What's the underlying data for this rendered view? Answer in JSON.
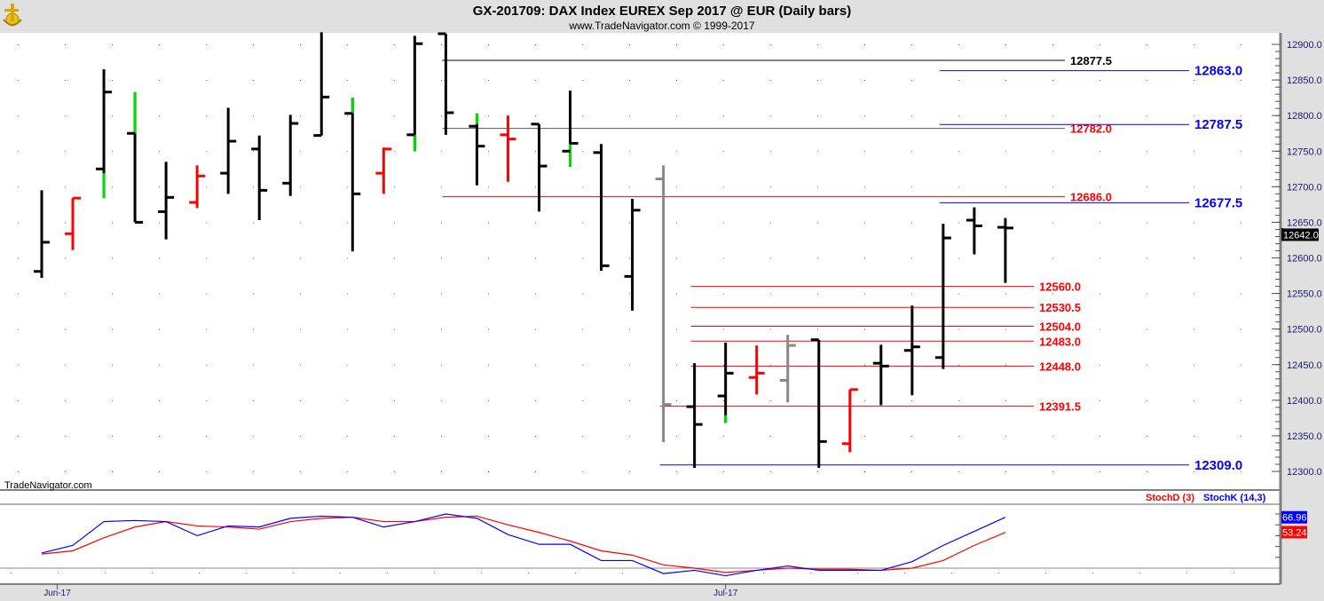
{
  "header": {
    "title": "GX-201709:  DAX Index EUREX Sep 2017 @ EUR  (Daily bars)",
    "subtitle": "www.TradeNavigator.com © 1999-2017",
    "logo_icon": "anchor-logo-icon"
  },
  "watermark": "TradeNavigator.com",
  "colors": {
    "up_highlight": "#00dd00",
    "red": "#ff0000",
    "blue": "#0000ff",
    "gray": "#888888",
    "black": "#000000"
  },
  "chart_data": [
    {
      "type": "ohlc",
      "title": "GX-201709:  DAX Index EUREX Sep 2017 @ EUR  (Daily bars)",
      "ylim": [
        12280,
        12920
      ],
      "yticks": [
        "12300.0",
        "12350.0",
        "12400.0",
        "12450.0",
        "12500.0",
        "12550.0",
        "12600.0",
        "12650.0",
        "12700.0",
        "12750.0",
        "12800.0",
        "12850.0",
        "12900.0"
      ],
      "xticks": [
        {
          "label": "Jun-17",
          "bar": 0.5
        },
        {
          "label": "Jul-17",
          "bar": 22
        }
      ],
      "grid": true,
      "last_price": "12642.0",
      "bars": [
        {
          "o": 12581,
          "h": 12695,
          "l": 12572,
          "c": 12622,
          "color": "black"
        },
        {
          "o": 12634,
          "h": 12684,
          "l": 12611,
          "c": 12684,
          "color": "red"
        },
        {
          "o": 12725,
          "h": 12865,
          "l": 12684,
          "c": 12833,
          "color": "black",
          "green": [
            12684,
            12719
          ]
        },
        {
          "o": 12775,
          "h": 12833,
          "l": 12650,
          "c": 12650,
          "color": "black",
          "green": [
            12775,
            12833
          ]
        },
        {
          "o": 12665,
          "h": 12735,
          "l": 12626,
          "c": 12685,
          "color": "black"
        },
        {
          "o": 12678,
          "h": 12730,
          "l": 12670,
          "c": 12715,
          "color": "red"
        },
        {
          "o": 12719,
          "h": 12811,
          "l": 12690,
          "c": 12764,
          "color": "black"
        },
        {
          "o": 12753,
          "h": 12772,
          "l": 12653,
          "c": 12695,
          "color": "black"
        },
        {
          "o": 12705,
          "h": 12801,
          "l": 12687,
          "c": 12789,
          "color": "black"
        },
        {
          "o": 12772,
          "h": 12917,
          "l": 12772,
          "c": 12826,
          "color": "black"
        },
        {
          "o": 12803,
          "h": 12825,
          "l": 12609,
          "c": 12690,
          "color": "black",
          "green": [
            12803,
            12825
          ]
        },
        {
          "o": 12719,
          "h": 12755,
          "l": 12690,
          "c": 12753,
          "color": "red"
        },
        {
          "o": 12773,
          "h": 12912,
          "l": 12750,
          "c": 12901,
          "color": "black",
          "green": [
            12750,
            12773
          ]
        },
        {
          "o": 12915,
          "h": 12915,
          "l": 12773,
          "c": 12804,
          "color": "black"
        },
        {
          "o": 12785,
          "h": 12803,
          "l": 12702,
          "c": 12757,
          "color": "black",
          "green": [
            12788,
            12803
          ]
        },
        {
          "o": 12773,
          "h": 12800,
          "l": 12707,
          "c": 12767,
          "color": "red"
        },
        {
          "o": 12788,
          "h": 12788,
          "l": 12665,
          "c": 12729,
          "color": "black"
        },
        {
          "o": 12750,
          "h": 12835,
          "l": 12728,
          "c": 12761,
          "color": "black",
          "green": [
            12728,
            12760
          ]
        },
        {
          "o": 12748,
          "h": 12760,
          "l": 12582,
          "c": 12589,
          "color": "black"
        },
        {
          "o": 12574,
          "h": 12683,
          "l": 12526,
          "c": 12667,
          "color": "black"
        },
        {
          "o": 12711,
          "h": 12730,
          "l": 12341,
          "c": 12394,
          "color": "gray"
        },
        {
          "o": 12391,
          "h": 12452,
          "l": 12305,
          "c": 12366,
          "color": "black"
        },
        {
          "o": 12406,
          "h": 12481,
          "l": 12368,
          "c": 12438,
          "color": "black",
          "green": [
            12368,
            12379
          ]
        },
        {
          "o": 12432,
          "h": 12477,
          "l": 12408,
          "c": 12438,
          "color": "red"
        },
        {
          "o": 12428,
          "h": 12492,
          "l": 12397,
          "c": 12477,
          "color": "gray"
        },
        {
          "o": 12485,
          "h": 12485,
          "l": 12305,
          "c": 12342,
          "color": "black"
        },
        {
          "o": 12339,
          "h": 12415,
          "l": 12327,
          "c": 12415,
          "color": "red"
        },
        {
          "o": 12452,
          "h": 12478,
          "l": 12393,
          "c": 12448,
          "color": "black"
        },
        {
          "o": 12470,
          "h": 12533,
          "l": 12407,
          "c": 12475,
          "color": "black"
        },
        {
          "o": 12460,
          "h": 12648,
          "l": 12444,
          "c": 12628,
          "color": "black"
        },
        {
          "o": 12653,
          "h": 12671,
          "l": 12605,
          "c": 12645,
          "color": "black"
        },
        {
          "o": 12643,
          "h": 12656,
          "l": 12565,
          "c": 12642,
          "color": "black"
        }
      ],
      "levels": [
        {
          "label": "12877.5",
          "price": 12877.5,
          "from_bar": 13,
          "group": "A",
          "line": "#000000",
          "text": "#000000"
        },
        {
          "label": "12863.0",
          "price": 12863.0,
          "from_bar": 29,
          "group": "B",
          "line": "#0000ff",
          "text": "#0000ff"
        },
        {
          "label": "12787.5",
          "price": 12787.5,
          "from_bar": 29,
          "group": "B",
          "line": "#0000ff",
          "text": "#0000ff"
        },
        {
          "label": "12782.0",
          "price": 12782.0,
          "from_bar": 13,
          "group": "A",
          "line": "#555555",
          "text": "#ff0000"
        },
        {
          "label": "12686.0",
          "price": 12686.0,
          "from_bar": 13,
          "group": "A",
          "line": "#ff0000",
          "text": "#ff0000"
        },
        {
          "label": "12677.5",
          "price": 12677.5,
          "from_bar": 29,
          "group": "B",
          "line": "#0000ff",
          "text": "#0000ff"
        },
        {
          "label": "12560.0",
          "price": 12560.0,
          "from_bar": 21,
          "group": "C",
          "line": "#ff0000",
          "text": "#ff0000"
        },
        {
          "label": "12530.5",
          "price": 12530.5,
          "from_bar": 21,
          "group": "C",
          "line": "#ff0000",
          "text": "#ff0000"
        },
        {
          "label": "12504.0",
          "price": 12504.0,
          "from_bar": 21,
          "group": "C",
          "line": "#ff0000",
          "text": "#ff0000"
        },
        {
          "label": "12483.0",
          "price": 12483.0,
          "from_bar": 21,
          "group": "C",
          "line": "#ff0000",
          "text": "#ff0000"
        },
        {
          "label": "12448.0",
          "price": 12448.0,
          "from_bar": 21,
          "group": "C",
          "line": "#ff0000",
          "text": "#ff0000"
        },
        {
          "label": "12391.5",
          "price": 12391.5,
          "from_bar": 20,
          "group": "C",
          "line": "#ff0000",
          "text": "#ff0000"
        },
        {
          "label": "12309.0",
          "price": 12309.0,
          "from_bar": 20,
          "group": "B",
          "line": "#0000ff",
          "text": "#0000ff"
        }
      ]
    },
    {
      "type": "line",
      "ylim": [
        6,
        80
      ],
      "reference_line": 20,
      "series": [
        {
          "name": "StochD (3)",
          "color": "#ff0000",
          "last": "53.24",
          "values": [
            33,
            36,
            48,
            58,
            63,
            59,
            58,
            56,
            63,
            66,
            67,
            63,
            63,
            67,
            68,
            60,
            53,
            45,
            36,
            32,
            23,
            20,
            16,
            18,
            20,
            19,
            19,
            18,
            20,
            27,
            41,
            53
          ]
        },
        {
          "name": "StochK (14,3)",
          "color": "#0000ff",
          "last": "66.96",
          "values": [
            34,
            41,
            63,
            64,
            63,
            50,
            59,
            58,
            66,
            68,
            67,
            58,
            63,
            70,
            66,
            51,
            42,
            42,
            27,
            27,
            15,
            18,
            13,
            18,
            22,
            18,
            18,
            18,
            26,
            41,
            54,
            67
          ]
        }
      ]
    }
  ]
}
